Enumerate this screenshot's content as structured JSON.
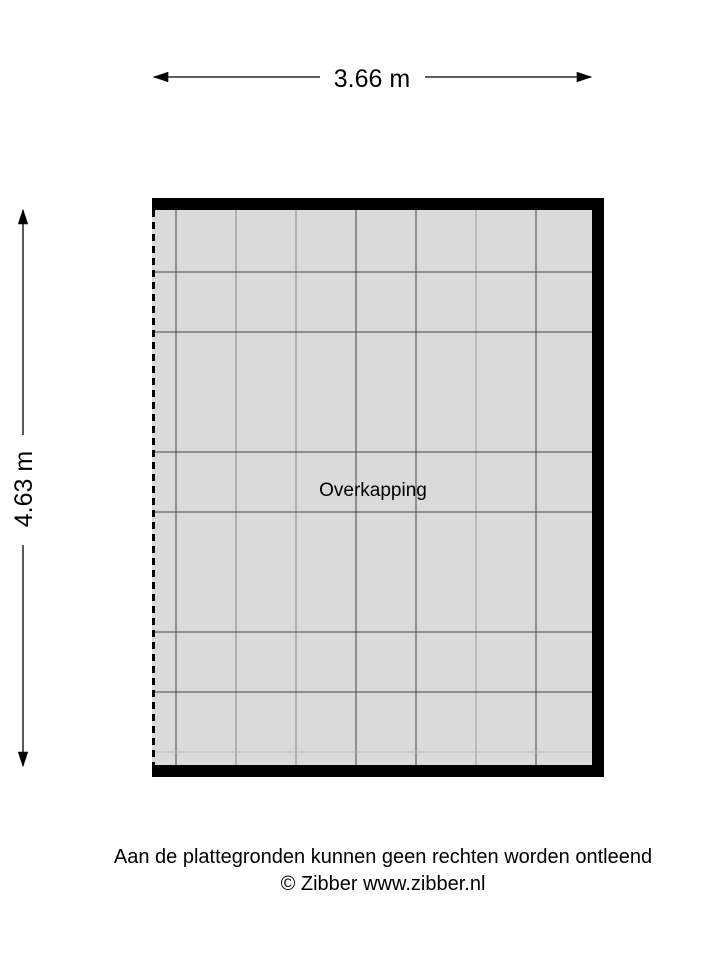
{
  "dimensions": {
    "width_label": "3.66 m",
    "height_label": "4.63 m"
  },
  "room": {
    "label": "Overkapping",
    "fill_color": "#dadada",
    "wall_color": "#000000"
  },
  "footer": {
    "disclaimer": "Aan de plattegronden kunnen geen rechten worden ontleend",
    "copyright": "© Zibber www.zibber.nl"
  }
}
